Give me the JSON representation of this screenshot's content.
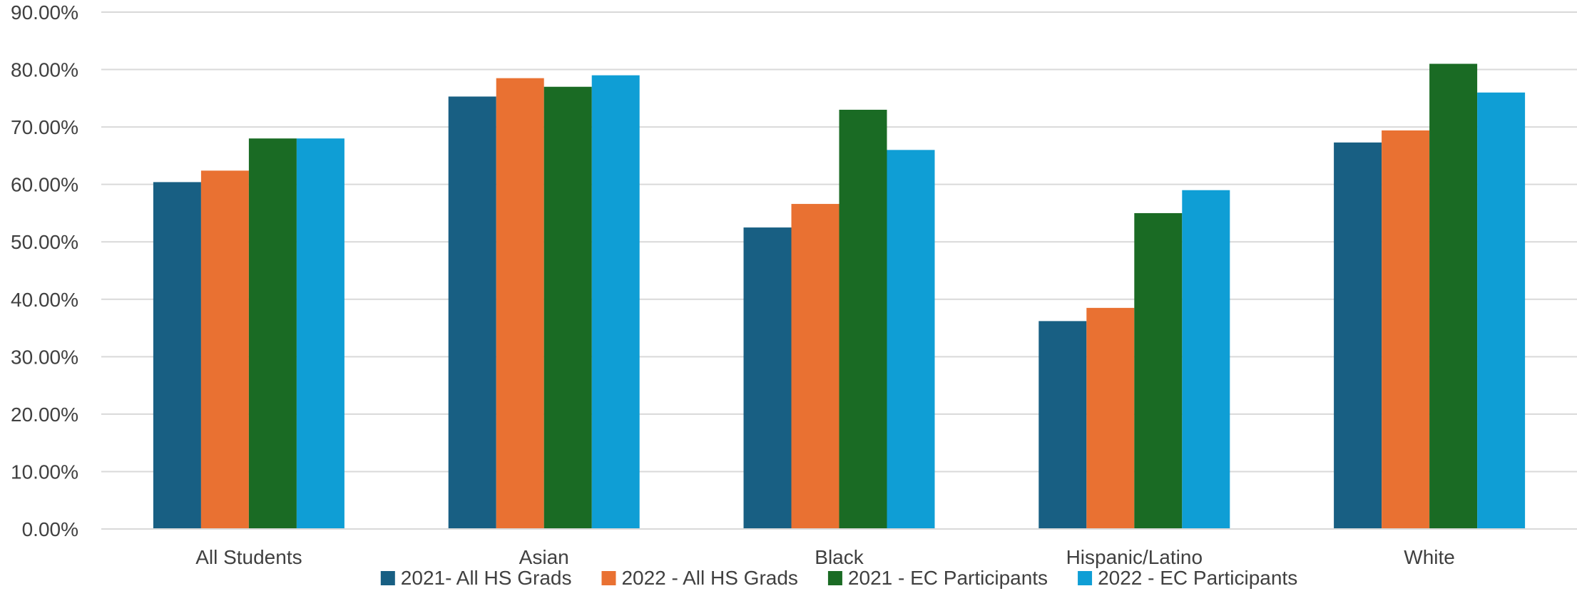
{
  "chart_data": {
    "type": "bar",
    "categories": [
      "All Students",
      "Asian",
      "Black",
      "Hispanic/Latino",
      "White"
    ],
    "series": [
      {
        "name": "2021- All HS Grads",
        "color": "#185f83",
        "values": [
          60.4,
          75.3,
          52.5,
          36.2,
          67.3
        ]
      },
      {
        "name": "2022 - All HS Grads",
        "color": "#e97132",
        "values": [
          62.4,
          78.5,
          56.6,
          38.5,
          69.4
        ]
      },
      {
        "name": "2021 - EC Participants",
        "color": "#1a6b24",
        "values": [
          68.0,
          77.0,
          73.0,
          55.0,
          81.0
        ]
      },
      {
        "name": "2022 - EC Participants",
        "color": "#0f9ed5",
        "values": [
          68.0,
          79.0,
          66.0,
          59.0,
          76.0
        ]
      }
    ],
    "y_ticks": [
      "0.00%",
      "10.00%",
      "20.00%",
      "30.00%",
      "40.00%",
      "50.00%",
      "60.00%",
      "70.00%",
      "80.00%",
      "90.00%"
    ],
    "ylim": [
      0,
      90
    ],
    "grid": true,
    "legend_position": "bottom"
  }
}
